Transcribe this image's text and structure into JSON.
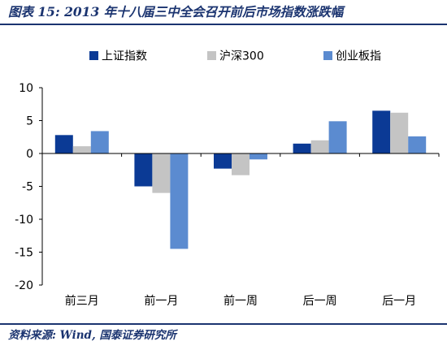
{
  "header": {
    "title": "图表 15:  2013 年十八届三中全会召开前后市场指数涨跌幅"
  },
  "footer": {
    "source": "资料来源:  Wind,  国泰证券研究所"
  },
  "chart_data": {
    "type": "bar",
    "categories": [
      "前三月",
      "前一月",
      "前一周",
      "后一周",
      "后一月"
    ],
    "series": [
      {
        "name": "上证指数",
        "color": "#0b3a95",
        "values": [
          2.8,
          -5.0,
          -2.3,
          1.5,
          6.5
        ]
      },
      {
        "name": "沪深300",
        "color": "#c4c4c4",
        "values": [
          1.1,
          -6.0,
          -3.3,
          2.0,
          6.2
        ]
      },
      {
        "name": "创业板指",
        "color": "#5b8bd0",
        "values": [
          3.4,
          -14.5,
          -0.9,
          4.9,
          2.6
        ]
      }
    ],
    "ylim": [
      -20,
      10
    ],
    "yticks": [
      "10",
      "5",
      "0",
      "-5",
      "-10",
      "-15",
      "-20"
    ],
    "ytick_values": [
      10,
      5,
      0,
      -5,
      -10,
      -15,
      -20
    ],
    "legend_position": "top",
    "grid": false
  }
}
